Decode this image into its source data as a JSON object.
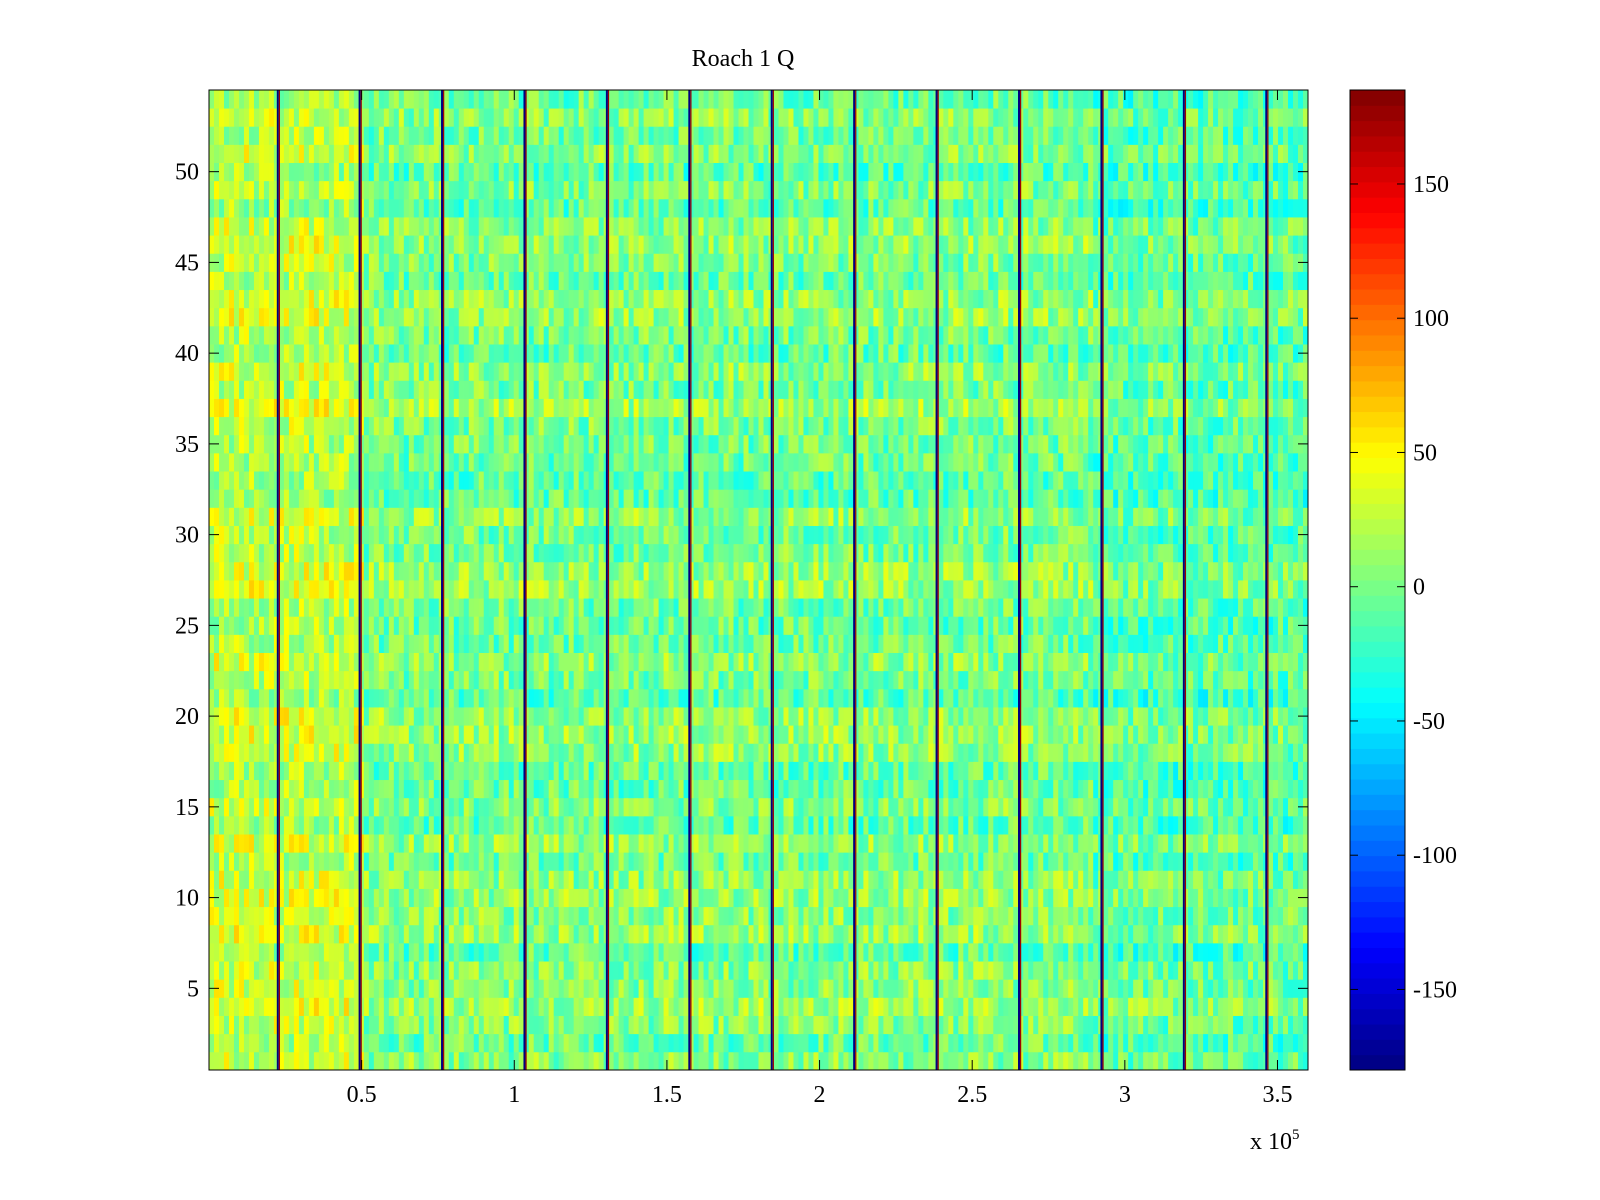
{
  "chart_data": {
    "type": "heatmap",
    "title": "Roach 1 Q",
    "xlabel": "",
    "ylabel": "",
    "x_range": [
      0,
      360000
    ],
    "y_range": [
      0.5,
      54.5
    ],
    "x_ticks": [
      50000,
      100000,
      150000,
      200000,
      250000,
      300000,
      350000
    ],
    "x_tick_labels": [
      "0.5",
      "1",
      "1.5",
      "2",
      "2.5",
      "3",
      "3.5"
    ],
    "x_exponent_label": {
      "base": "x 10",
      "exponent": "5"
    },
    "y_ticks": [
      5,
      10,
      15,
      20,
      25,
      30,
      35,
      40,
      45,
      50
    ],
    "y_tick_labels": [
      "5",
      "10",
      "15",
      "20",
      "25",
      "30",
      "35",
      "40",
      "45",
      "50"
    ],
    "rows": 54,
    "colormap": "jet",
    "colorbar": {
      "range": [
        -180,
        185
      ],
      "ticks": [
        -150,
        -100,
        -50,
        0,
        50,
        100,
        150
      ],
      "tick_labels": [
        "-150",
        "-100",
        "-50",
        "0",
        "50",
        "100",
        "150"
      ]
    },
    "vertical_discontinuities_x": [
      22700,
      49500,
      76500,
      103500,
      130500,
      157500,
      184500,
      211500,
      238500,
      265500,
      292500,
      319500,
      346500
    ],
    "region_trends": [
      {
        "x_range": [
          0,
          50000
        ],
        "description": "mostly positive, warm",
        "mean_approx": 25
      },
      {
        "x_range": [
          50000,
          290000
        ],
        "description": "near zero",
        "mean_approx": 0
      },
      {
        "x_range": [
          290000,
          360000
        ],
        "description": "mixed, some rows negative",
        "mean_approx": -10
      }
    ],
    "grid": false,
    "legend": "colorbar-right"
  }
}
